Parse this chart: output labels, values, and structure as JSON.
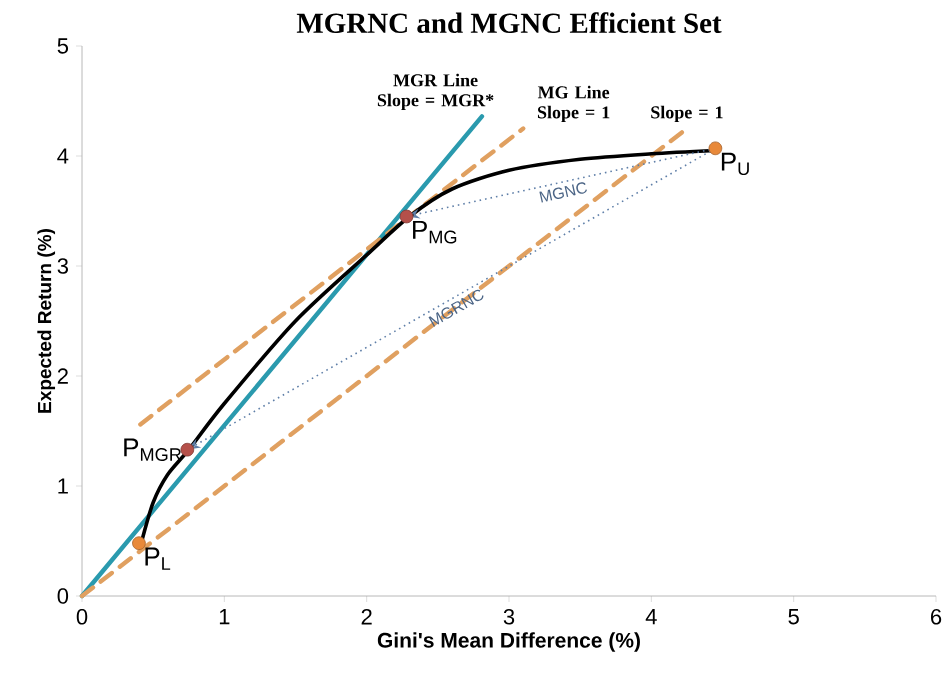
{
  "chart_data": {
    "type": "line",
    "title": "MGRNC and MGNC Efficient Set",
    "xlabel": "Gini's Mean Difference (%)",
    "ylabel": "Expected Return (%)",
    "xlim": [
      0,
      6
    ],
    "ylim": [
      0,
      5
    ],
    "xticks": [
      0,
      1,
      2,
      3,
      4,
      5,
      6
    ],
    "yticks": [
      0,
      1,
      2,
      3,
      4,
      5
    ],
    "grid": false,
    "legend": false,
    "marker": "none",
    "series": [
      {
        "type": "line",
        "color": "#2a9aae",
        "x": [
          0,
          2.81
        ],
        "values": [
          0,
          4.36
        ]
      },
      {
        "type": "line",
        "color": "#e0a060",
        "line_style": "dashed",
        "x": [
          0.41,
          3.1
        ],
        "values": [
          1.56,
          4.25
        ]
      },
      {
        "type": "line",
        "color": "#e0a060",
        "line_style": "dashed",
        "x": [
          0,
          4.25
        ],
        "values": [
          0,
          4.25
        ]
      },
      {
        "type": "line",
        "color": "#000000",
        "x": [
          0.42,
          0.5,
          0.6,
          0.75,
          1.0,
          1.5,
          2.0,
          2.3,
          2.6,
          3.0,
          3.5,
          4.0,
          4.45
        ],
        "values": [
          0.5,
          0.85,
          1.1,
          1.33,
          1.75,
          2.5,
          3.1,
          3.45,
          3.7,
          3.87,
          3.97,
          4.02,
          4.05
        ]
      },
      {
        "type": "scatter",
        "name": "P$_{L}$",
        "color": "#e8893a",
        "marker": "circle",
        "x": [
          0.4
        ],
        "values": [
          0.48
        ]
      },
      {
        "type": "scatter",
        "name": "P$_{MGR}$",
        "color": "#b5504a",
        "marker": "circle",
        "x": [
          0.74
        ],
        "values": [
          1.33
        ]
      },
      {
        "type": "scatter",
        "name": "P$_{MG}$",
        "color": "#b5504a",
        "marker": "circle",
        "x": [
          2.28
        ],
        "values": [
          3.45
        ]
      },
      {
        "type": "scatter",
        "name": "P$_{U}$",
        "color": "#e8893a",
        "marker": "circle",
        "x": [
          4.45
        ],
        "values": [
          4.07
        ]
      }
    ],
    "annotations": [
      {
        "text": "MGR Line Slope = MGR*",
        "x": 2.81,
        "y": 4.36
      },
      {
        "text": "MG Line Slope = 1",
        "x": 3.1,
        "y": 4.25
      },
      {
        "text": "Slope = 1",
        "x": 4.25,
        "y": 4.25
      },
      "MGNC",
      "MGRNC"
    ]
  }
}
